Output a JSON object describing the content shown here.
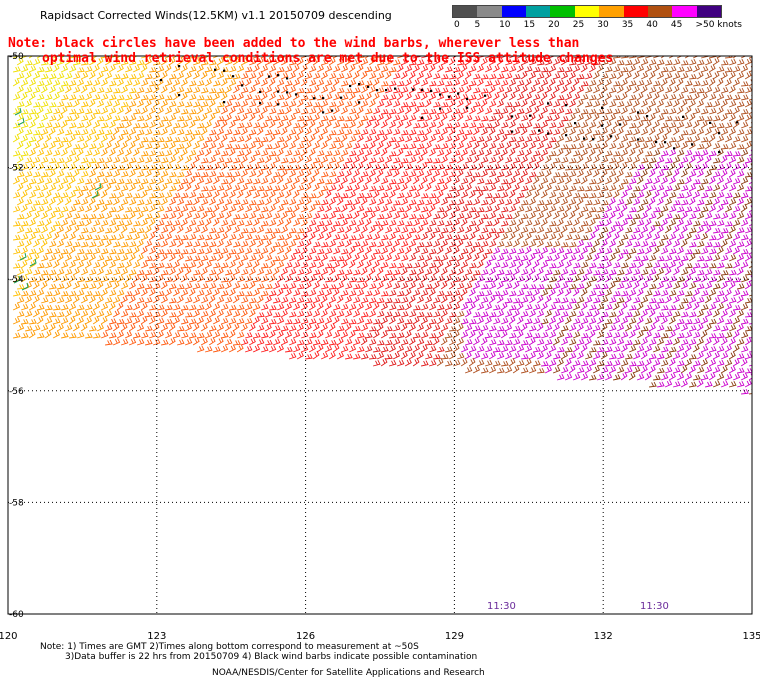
{
  "title": "Rapidsact Corrected Winds(12.5KM) v1.1 20150709 descending",
  "note_line1": "Note: black circles have been added to the wind barbs, wherever less than",
  "note_line2": "optimal wind retrieval conditions are met due to the ISS attitude changes",
  "legend": {
    "labels": [
      "0",
      "5",
      "10",
      "15",
      "20",
      "25",
      "30",
      "35",
      "40",
      "45",
      ">50 knots"
    ],
    "colors": [
      "#505050",
      "#8a8a8a",
      "#0000ff",
      "#00a0a0",
      "#00c000",
      "#ffff00",
      "#ffa000",
      "#ff0000",
      "#b05010",
      "#ff00ff",
      "#400080"
    ]
  },
  "axes": {
    "lon_ticks": [
      "120",
      "123",
      "126",
      "129",
      "132",
      "135"
    ],
    "lat_ticks": [
      "-50",
      "-52",
      "-54",
      "-56",
      "-58",
      "-60"
    ]
  },
  "time_labels": [
    "11:30",
    "11:30"
  ],
  "footer": {
    "line1": "Note: 1) Times are GMT 2)Times along bottom correspond to measurement at ~50S",
    "line2": "3)Data buffer is 22 hrs from 20150709 4) Black wind barbs indicate possible contamination",
    "credit": "NOAA/NESDIS/Center for Satellite Applications and Research"
  }
}
